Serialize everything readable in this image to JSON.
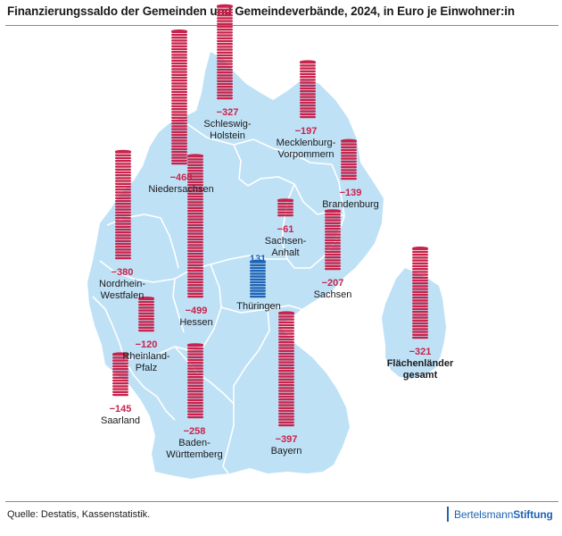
{
  "title": "Finanzierungssaldo der Gemeinden und Gemeindeverbände, 2024, in Euro je Einwohner:in",
  "source": "Quelle: Destatis, Kassenstatistik.",
  "logo": {
    "part1": "Bertelsmann",
    "part2": "Stiftung"
  },
  "colors": {
    "map_fill": "#bfe1f6",
    "border": "#ffffff",
    "negative": "#c8234b",
    "positive": "#1f64b4"
  },
  "chart_data": {
    "type": "map",
    "unit": "Euro je Einwohner:in",
    "year": 2024,
    "regions": [
      {
        "name_lines": [
          "Schleswig-",
          "Holstein"
        ],
        "value_label": "−327",
        "value": -327
      },
      {
        "name_lines": [
          "Niedersachsen"
        ],
        "value_label": "−468",
        "value": -468
      },
      {
        "name_lines": [
          "Mecklenburg-",
          "Vorpommern"
        ],
        "value_label": "−197",
        "value": -197
      },
      {
        "name_lines": [
          "Brandenburg"
        ],
        "value_label": "−139",
        "value": -139
      },
      {
        "name_lines": [
          "Sachsen-",
          "Anhalt"
        ],
        "value_label": "−61",
        "value": -61
      },
      {
        "name_lines": [
          "Nordrhein-",
          "Westfalen"
        ],
        "value_label": "−380",
        "value": -380
      },
      {
        "name_lines": [
          "Hessen"
        ],
        "value_label": "−499",
        "value": -499
      },
      {
        "name_lines": [
          "Thüringen"
        ],
        "value_label": "131",
        "value": 131
      },
      {
        "name_lines": [
          "Sachsen"
        ],
        "value_label": "−207",
        "value": -207
      },
      {
        "name_lines": [
          "Rheinland-",
          "Pfalz"
        ],
        "value_label": "−120",
        "value": -120
      },
      {
        "name_lines": [
          "Saarland"
        ],
        "value_label": "−145",
        "value": -145
      },
      {
        "name_lines": [
          "Baden-",
          "Württemberg"
        ],
        "value_label": "−258",
        "value": -258
      },
      {
        "name_lines": [
          "Bayern"
        ],
        "value_label": "−397",
        "value": -397
      },
      {
        "name_lines": [
          "Flächenländer",
          "gesamt"
        ],
        "value_label": "−321",
        "value": -321
      }
    ]
  }
}
